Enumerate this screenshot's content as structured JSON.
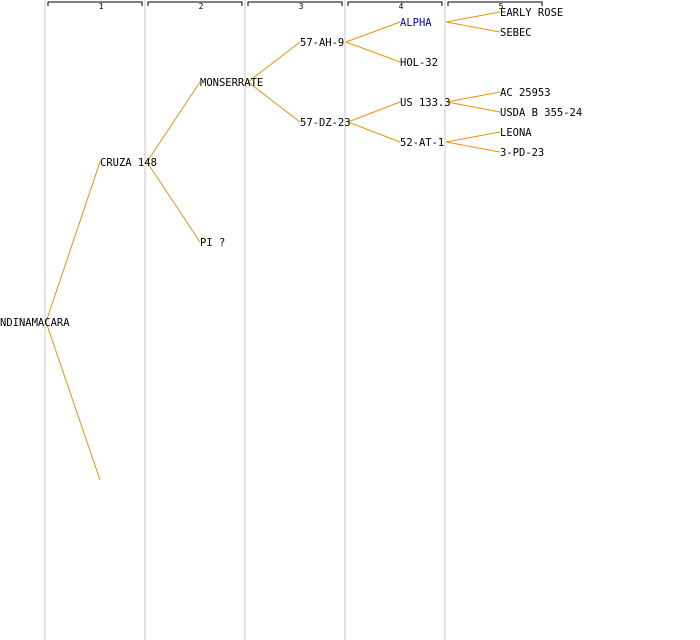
{
  "tree": {
    "generations": [
      "1",
      "2",
      "3",
      "4",
      "5"
    ],
    "nodes": [
      {
        "id": "root",
        "label": "NDINAMACARA"
      },
      {
        "id": "cruza148",
        "label": "CRUZA 148"
      },
      {
        "id": "unknown",
        "label": ""
      },
      {
        "id": "monserrate",
        "label": "MONSERRATE"
      },
      {
        "id": "pi",
        "label": "PI ?"
      },
      {
        "id": "57ah9",
        "label": "57-AH-9"
      },
      {
        "id": "57dz23",
        "label": "57-DZ-23"
      },
      {
        "id": "alpha",
        "label": "ALPHA",
        "highlight": true
      },
      {
        "id": "hol32",
        "label": "HOL-32"
      },
      {
        "id": "us1333",
        "label": "US 133.3"
      },
      {
        "id": "52at1",
        "label": "52-AT-1"
      },
      {
        "id": "earlyrose",
        "label": "EARLY ROSE"
      },
      {
        "id": "sebec",
        "label": "SEBEC"
      },
      {
        "id": "ac25953",
        "label": "AC 25953"
      },
      {
        "id": "usdab35524",
        "label": "USDA B 355-24"
      },
      {
        "id": "leona",
        "label": "LEONA"
      },
      {
        "id": "3pd23",
        "label": "3-PD-23"
      }
    ],
    "edges": [
      [
        "root",
        "cruza148"
      ],
      [
        "root",
        "unknown"
      ],
      [
        "cruza148",
        "monserrate"
      ],
      [
        "cruza148",
        "pi"
      ],
      [
        "monserrate",
        "57ah9"
      ],
      [
        "monserrate",
        "57dz23"
      ],
      [
        "57ah9",
        "alpha"
      ],
      [
        "57ah9",
        "hol32"
      ],
      [
        "57dz23",
        "us1333"
      ],
      [
        "57dz23",
        "52at1"
      ],
      [
        "alpha",
        "earlyrose"
      ],
      [
        "alpha",
        "sebec"
      ],
      [
        "us1333",
        "ac25953"
      ],
      [
        "us1333",
        "usdab35524"
      ],
      [
        "52at1",
        "leona"
      ],
      [
        "52at1",
        "3pd23"
      ]
    ],
    "colors": {
      "edge": "#f0900a",
      "highlight": "#0000cc",
      "column_line": "#e4e4e4"
    }
  }
}
